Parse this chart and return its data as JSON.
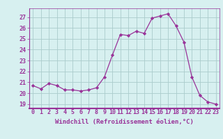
{
  "hours": [
    0,
    1,
    2,
    3,
    4,
    5,
    6,
    7,
    8,
    9,
    10,
    11,
    12,
    13,
    14,
    15,
    16,
    17,
    18,
    19,
    20,
    21,
    22,
    23
  ],
  "values": [
    20.7,
    20.4,
    20.9,
    20.7,
    20.3,
    20.3,
    20.2,
    20.3,
    20.5,
    21.5,
    23.5,
    25.4,
    25.3,
    25.7,
    25.5,
    26.9,
    27.1,
    27.3,
    26.2,
    24.7,
    21.5,
    19.8,
    19.2,
    19.0
  ],
  "line_color": "#993399",
  "marker": "D",
  "marker_size": 2.2,
  "bg_color": "#d7f0f0",
  "grid_color": "#aacccc",
  "ylabel_ticks": [
    19,
    20,
    21,
    22,
    23,
    24,
    25,
    26,
    27
  ],
  "ylim": [
    18.6,
    27.8
  ],
  "xlim": [
    -0.5,
    23.5
  ],
  "xlabel": "Windchill (Refroidissement éolien,°C)",
  "xlabel_fontsize": 6.5,
  "tick_fontsize": 6.0,
  "tick_color": "#993399",
  "spine_color": "#993399",
  "separator_color": "#993399",
  "separator_linewidth": 1.5
}
